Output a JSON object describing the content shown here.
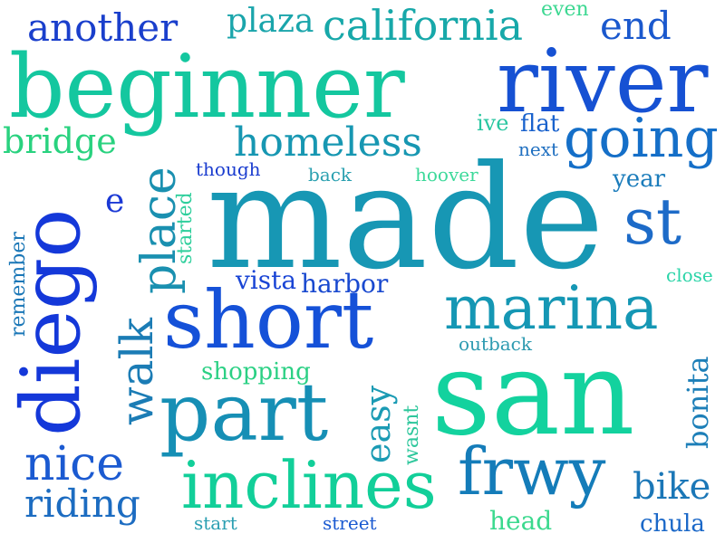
{
  "words": [
    {
      "text": "made",
      "color": "#1797b4",
      "rotate": 0
    },
    {
      "text": "san",
      "color": "#13d29e",
      "rotate": 0
    },
    {
      "text": "beginner",
      "color": "#14c79f",
      "rotate": 0
    },
    {
      "text": "river",
      "color": "#1651d3",
      "rotate": 0
    },
    {
      "text": "diego",
      "color": "#1438d9",
      "rotate": -90
    },
    {
      "text": "short",
      "color": "#1551d8",
      "rotate": 0
    },
    {
      "text": "part",
      "color": "#168fb5",
      "rotate": 0
    },
    {
      "text": "marina",
      "color": "#1597b4",
      "rotate": 0
    },
    {
      "text": "inclines",
      "color": "#12cf99",
      "rotate": 0
    },
    {
      "text": "frwy",
      "color": "#147cb9",
      "rotate": 0
    },
    {
      "text": "st",
      "color": "#1d6bc8",
      "rotate": 0
    },
    {
      "text": "going",
      "color": "#156fc8",
      "rotate": 0
    },
    {
      "text": "california",
      "color": "#17a8a9",
      "rotate": 0
    },
    {
      "text": "homeless",
      "color": "#1797b2",
      "rotate": 0
    },
    {
      "text": "another",
      "color": "#1a3fcc",
      "rotate": 0
    },
    {
      "text": "plaza",
      "color": "#1aa5ab",
      "rotate": 0
    },
    {
      "text": "end",
      "color": "#1a58cd",
      "rotate": 0
    },
    {
      "text": "even",
      "color": "#3dd892",
      "rotate": 0
    },
    {
      "text": "bridge",
      "color": "#29d27f",
      "rotate": 0
    },
    {
      "text": "place",
      "color": "#1a90b0",
      "rotate": -90
    },
    {
      "text": "walk",
      "color": "#1b7cb5",
      "rotate": -90
    },
    {
      "text": "nice",
      "color": "#1b5ad1",
      "rotate": 0
    },
    {
      "text": "riding",
      "color": "#1c6cc1",
      "rotate": 0
    },
    {
      "text": "easy",
      "color": "#1b9bb4",
      "rotate": -90
    },
    {
      "text": "bike",
      "color": "#1b77b7",
      "rotate": 0
    },
    {
      "text": "bonita",
      "color": "#1d7fb8",
      "rotate": -90
    },
    {
      "text": "e",
      "color": "#1b39d5",
      "rotate": 0
    },
    {
      "text": "vista",
      "color": "#1a45d5",
      "rotate": 0
    },
    {
      "text": "harbor",
      "color": "#1949cf",
      "rotate": 0
    },
    {
      "text": "shopping",
      "color": "#2bd084",
      "rotate": 0
    },
    {
      "text": "ive",
      "color": "#29c6a0",
      "rotate": 0
    },
    {
      "text": "flat",
      "color": "#1962cd",
      "rotate": 0
    },
    {
      "text": "next",
      "color": "#1f6fc0",
      "rotate": 0
    },
    {
      "text": "though",
      "color": "#1a3ccf",
      "rotate": 0
    },
    {
      "text": "back",
      "color": "#2aa0b0",
      "rotate": 0
    },
    {
      "text": "hoover",
      "color": "#3cd99a",
      "rotate": 0
    },
    {
      "text": "year",
      "color": "#1b7cbb",
      "rotate": 0
    },
    {
      "text": "started",
      "color": "#2fcf9c",
      "rotate": -90
    },
    {
      "text": "remember",
      "color": "#1b77b7",
      "rotate": -90
    },
    {
      "text": "close",
      "color": "#2bd4a8",
      "rotate": 0
    },
    {
      "text": "outback",
      "color": "#2d9ab0",
      "rotate": 0
    },
    {
      "text": "wasnt",
      "color": "#2ec79c",
      "rotate": -90
    },
    {
      "text": "start",
      "color": "#2b9fb2",
      "rotate": 0
    },
    {
      "text": "street",
      "color": "#1b5ad1",
      "rotate": 0
    },
    {
      "text": "head",
      "color": "#3bd98e",
      "rotate": 0
    },
    {
      "text": "chula",
      "color": "#1b68c8",
      "rotate": 0
    }
  ]
}
